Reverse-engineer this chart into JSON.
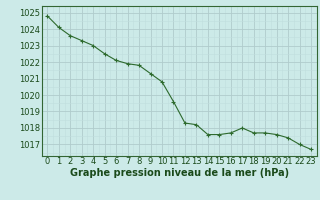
{
  "x": [
    0,
    1,
    2,
    3,
    4,
    5,
    6,
    7,
    8,
    9,
    10,
    11,
    12,
    13,
    14,
    15,
    16,
    17,
    18,
    19,
    20,
    21,
    22,
    23
  ],
  "y": [
    1024.8,
    1024.1,
    1023.6,
    1023.3,
    1023.0,
    1022.5,
    1022.1,
    1021.9,
    1021.8,
    1021.3,
    1020.8,
    1019.6,
    1018.3,
    1018.2,
    1017.6,
    1017.6,
    1017.7,
    1018.0,
    1017.7,
    1017.7,
    1017.6,
    1017.4,
    1017.0,
    1016.7
  ],
  "line_color": "#2d6a2d",
  "marker": "+",
  "marker_size": 3,
  "bg_color": "#cceae8",
  "grid_major_color": "#b0cccc",
  "grid_minor_color": "#c0dede",
  "ylabel_ticks": [
    1017,
    1018,
    1019,
    1020,
    1021,
    1022,
    1023,
    1024,
    1025
  ],
  "xlabel": "Graphe pression niveau de la mer (hPa)",
  "xlim": [
    -0.5,
    23.5
  ],
  "ylim": [
    1016.3,
    1025.4
  ],
  "xlabel_fontsize": 7,
  "tick_fontsize": 6,
  "label_color": "#1a4a1a"
}
